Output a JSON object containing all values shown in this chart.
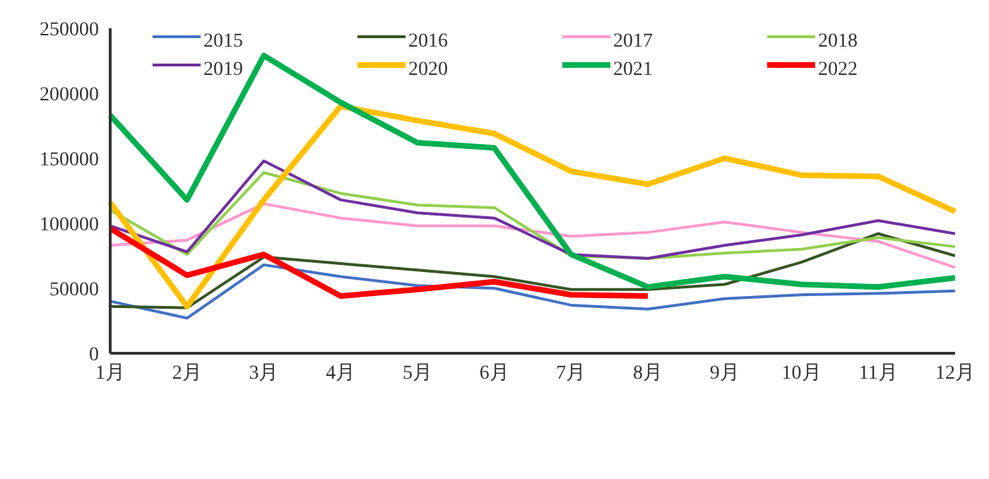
{
  "chart_data": {
    "type": "line",
    "categories": [
      "1月",
      "2月",
      "3月",
      "4月",
      "5月",
      "6月",
      "7月",
      "8月",
      "9月",
      "10月",
      "11月",
      "12月"
    ],
    "series": [
      {
        "name": "2015",
        "color": "#4472c4",
        "values": [
          40000,
          27000,
          68000,
          59000,
          52000,
          50000,
          37000,
          34000,
          42000,
          45000,
          46000,
          48000
        ]
      },
      {
        "name": "2016",
        "color": "#375623",
        "values": [
          36000,
          35000,
          74000,
          69000,
          64000,
          59000,
          49000,
          49000,
          53000,
          70000,
          92000,
          75000
        ]
      },
      {
        "name": "2017",
        "color": "#ff99cc",
        "values": [
          83000,
          87000,
          115000,
          104000,
          98000,
          98000,
          90000,
          93000,
          101000,
          93000,
          86000,
          66000
        ]
      },
      {
        "name": "2018",
        "color": "#92d050",
        "values": [
          110000,
          76000,
          139000,
          123000,
          114000,
          112000,
          75000,
          73000,
          77000,
          80000,
          89000,
          82000
        ]
      },
      {
        "name": "2019",
        "color": "#7030a0",
        "values": [
          98000,
          78000,
          148000,
          118000,
          108000,
          104000,
          76000,
          73000,
          83000,
          91000,
          102000,
          92000
        ]
      },
      {
        "name": "2020",
        "color": "#ffc000",
        "values": [
          116000,
          36000,
          118000,
          190000,
          179000,
          169000,
          140000,
          130000,
          150000,
          137000,
          136000,
          109000
        ]
      },
      {
        "name": "2021",
        "color": "#00b050",
        "values": [
          183000,
          118000,
          229000,
          193000,
          162000,
          158000,
          76000,
          51000,
          59000,
          53000,
          51000,
          58000
        ]
      },
      {
        "name": "2022",
        "color": "#ff0000",
        "values": [
          96000,
          60000,
          76000,
          44000,
          49000,
          55000,
          45000,
          44000,
          null,
          null,
          null,
          null
        ]
      }
    ],
    "ylim": [
      0,
      250000
    ],
    "yticks": [
      0,
      50000,
      100000,
      150000,
      200000,
      250000
    ],
    "grid": false,
    "legend": "top",
    "marker": "none",
    "line_style": "solid"
  }
}
